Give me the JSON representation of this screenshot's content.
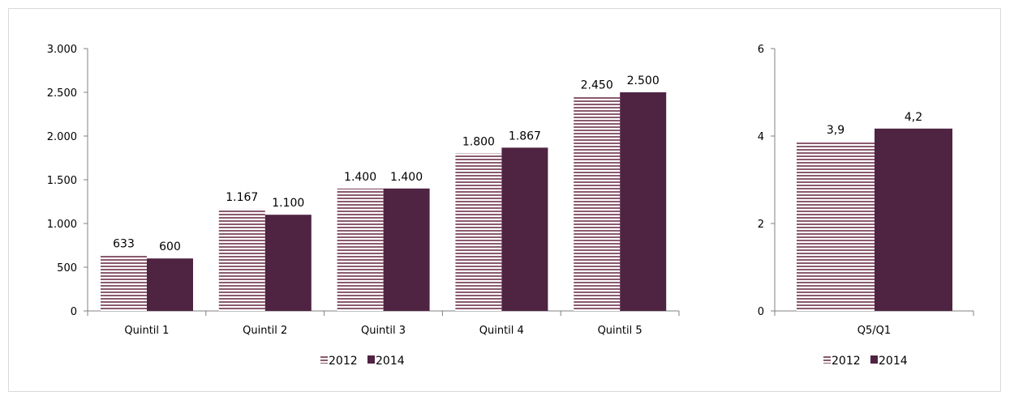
{
  "colors": {
    "s2012_stripe": "#8a5a6e",
    "s2014": "#4f2342",
    "axis": "#808080"
  },
  "chart_data": [
    {
      "type": "bar",
      "categories": [
        "Quintil 1",
        "Quintil 2",
        "Quintil 3",
        "Quintil 4",
        "Quintil 5"
      ],
      "series": [
        {
          "name": "2012",
          "values": [
            633,
            1167,
            1400,
            1800,
            2450
          ],
          "labels": [
            "633",
            "1.167",
            "1.400",
            "1.800",
            "2.450"
          ]
        },
        {
          "name": "2014",
          "values": [
            600,
            1100,
            1400,
            1867,
            2500
          ],
          "labels": [
            "600",
            "1.100",
            "1.400",
            "1.867",
            "2.500"
          ]
        }
      ],
      "ylim": [
        0,
        3000
      ],
      "yticks": [
        0,
        500,
        1000,
        1500,
        2000,
        2500,
        3000
      ],
      "ytick_labels": [
        "0",
        "500",
        "1.000",
        "1.500",
        "2.000",
        "2.500",
        "3.000"
      ],
      "grid": false,
      "legend": "bottom"
    },
    {
      "type": "bar",
      "categories": [
        "Q5/Q1"
      ],
      "series": [
        {
          "name": "2012",
          "values": [
            3.87
          ],
          "labels": [
            "3,9"
          ]
        },
        {
          "name": "2014",
          "values": [
            4.17
          ],
          "labels": [
            "4,2"
          ]
        }
      ],
      "ylim": [
        0,
        6
      ],
      "yticks": [
        0,
        2,
        4,
        6
      ],
      "ytick_labels": [
        "0",
        "2",
        "4",
        "6"
      ],
      "grid": false,
      "legend": "bottom"
    }
  ]
}
